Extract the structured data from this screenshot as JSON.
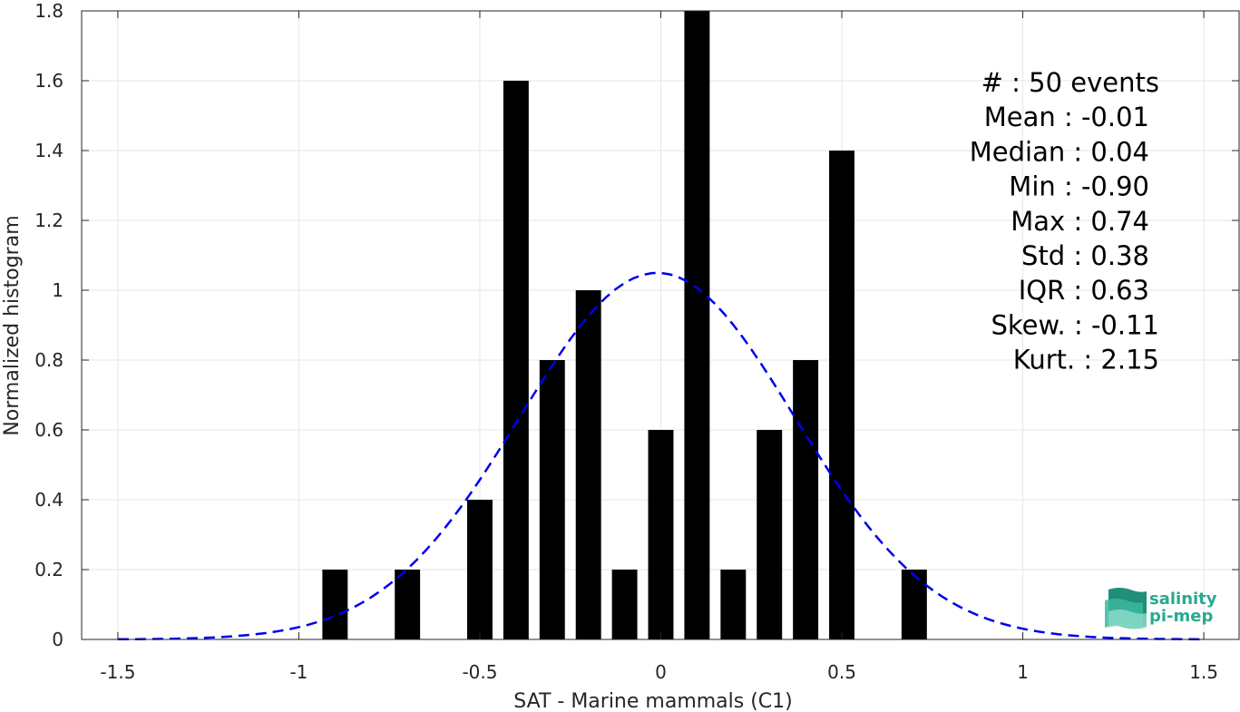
{
  "chart_data": {
    "type": "bar",
    "xlabel": "SAT - Marine mammals (C1)",
    "ylabel": "Normalized histogram",
    "xlim": [
      -1.6,
      1.6
    ],
    "ylim": [
      0,
      1.8
    ],
    "xticks": [
      -1.5,
      -1,
      -0.5,
      0,
      0.5,
      1,
      1.5
    ],
    "xtick_labels": [
      "-1.5",
      "-1",
      "-0.5",
      "0",
      "0.5",
      "1",
      "1.5"
    ],
    "yticks": [
      0,
      0.2,
      0.4,
      0.6,
      0.8,
      1,
      1.2,
      1.4,
      1.6,
      1.8
    ],
    "ytick_labels": [
      "0",
      "0.2",
      "0.4",
      "0.6",
      "0.8",
      "1",
      "1.2",
      "1.4",
      "1.6",
      "1.8"
    ],
    "grid": true,
    "bar_color": "#000000",
    "bar_width": 0.07,
    "bars": [
      {
        "x": -0.9,
        "value": 0.2
      },
      {
        "x": -0.7,
        "value": 0.2
      },
      {
        "x": -0.5,
        "value": 0.4
      },
      {
        "x": -0.4,
        "value": 1.6
      },
      {
        "x": -0.3,
        "value": 0.8
      },
      {
        "x": -0.2,
        "value": 1.0
      },
      {
        "x": -0.1,
        "value": 0.2
      },
      {
        "x": 0.0,
        "value": 0.6
      },
      {
        "x": 0.1,
        "value": 1.8
      },
      {
        "x": 0.2,
        "value": 0.2
      },
      {
        "x": 0.3,
        "value": 0.6
      },
      {
        "x": 0.4,
        "value": 0.8
      },
      {
        "x": 0.5,
        "value": 1.4
      },
      {
        "x": 0.7,
        "value": 0.2
      }
    ],
    "fit_curve": {
      "kind": "gaussian",
      "mean": -0.01,
      "std": 0.38,
      "x_range": [
        -1.5,
        1.5
      ],
      "color": "#0000ee",
      "style": "dashed"
    },
    "stats_lines": [
      "#  : 50 events",
      "Mean : -0.01",
      "Median : 0.04",
      "Min : -0.90",
      "Max : 0.74",
      "Std : 0.38",
      "IQR : 0.63",
      "Skew. : -0.11",
      "Kurt. : 2.15"
    ]
  },
  "logo": {
    "line1": "salinity",
    "line2": "pi-mep",
    "color": "#2aa98f"
  }
}
